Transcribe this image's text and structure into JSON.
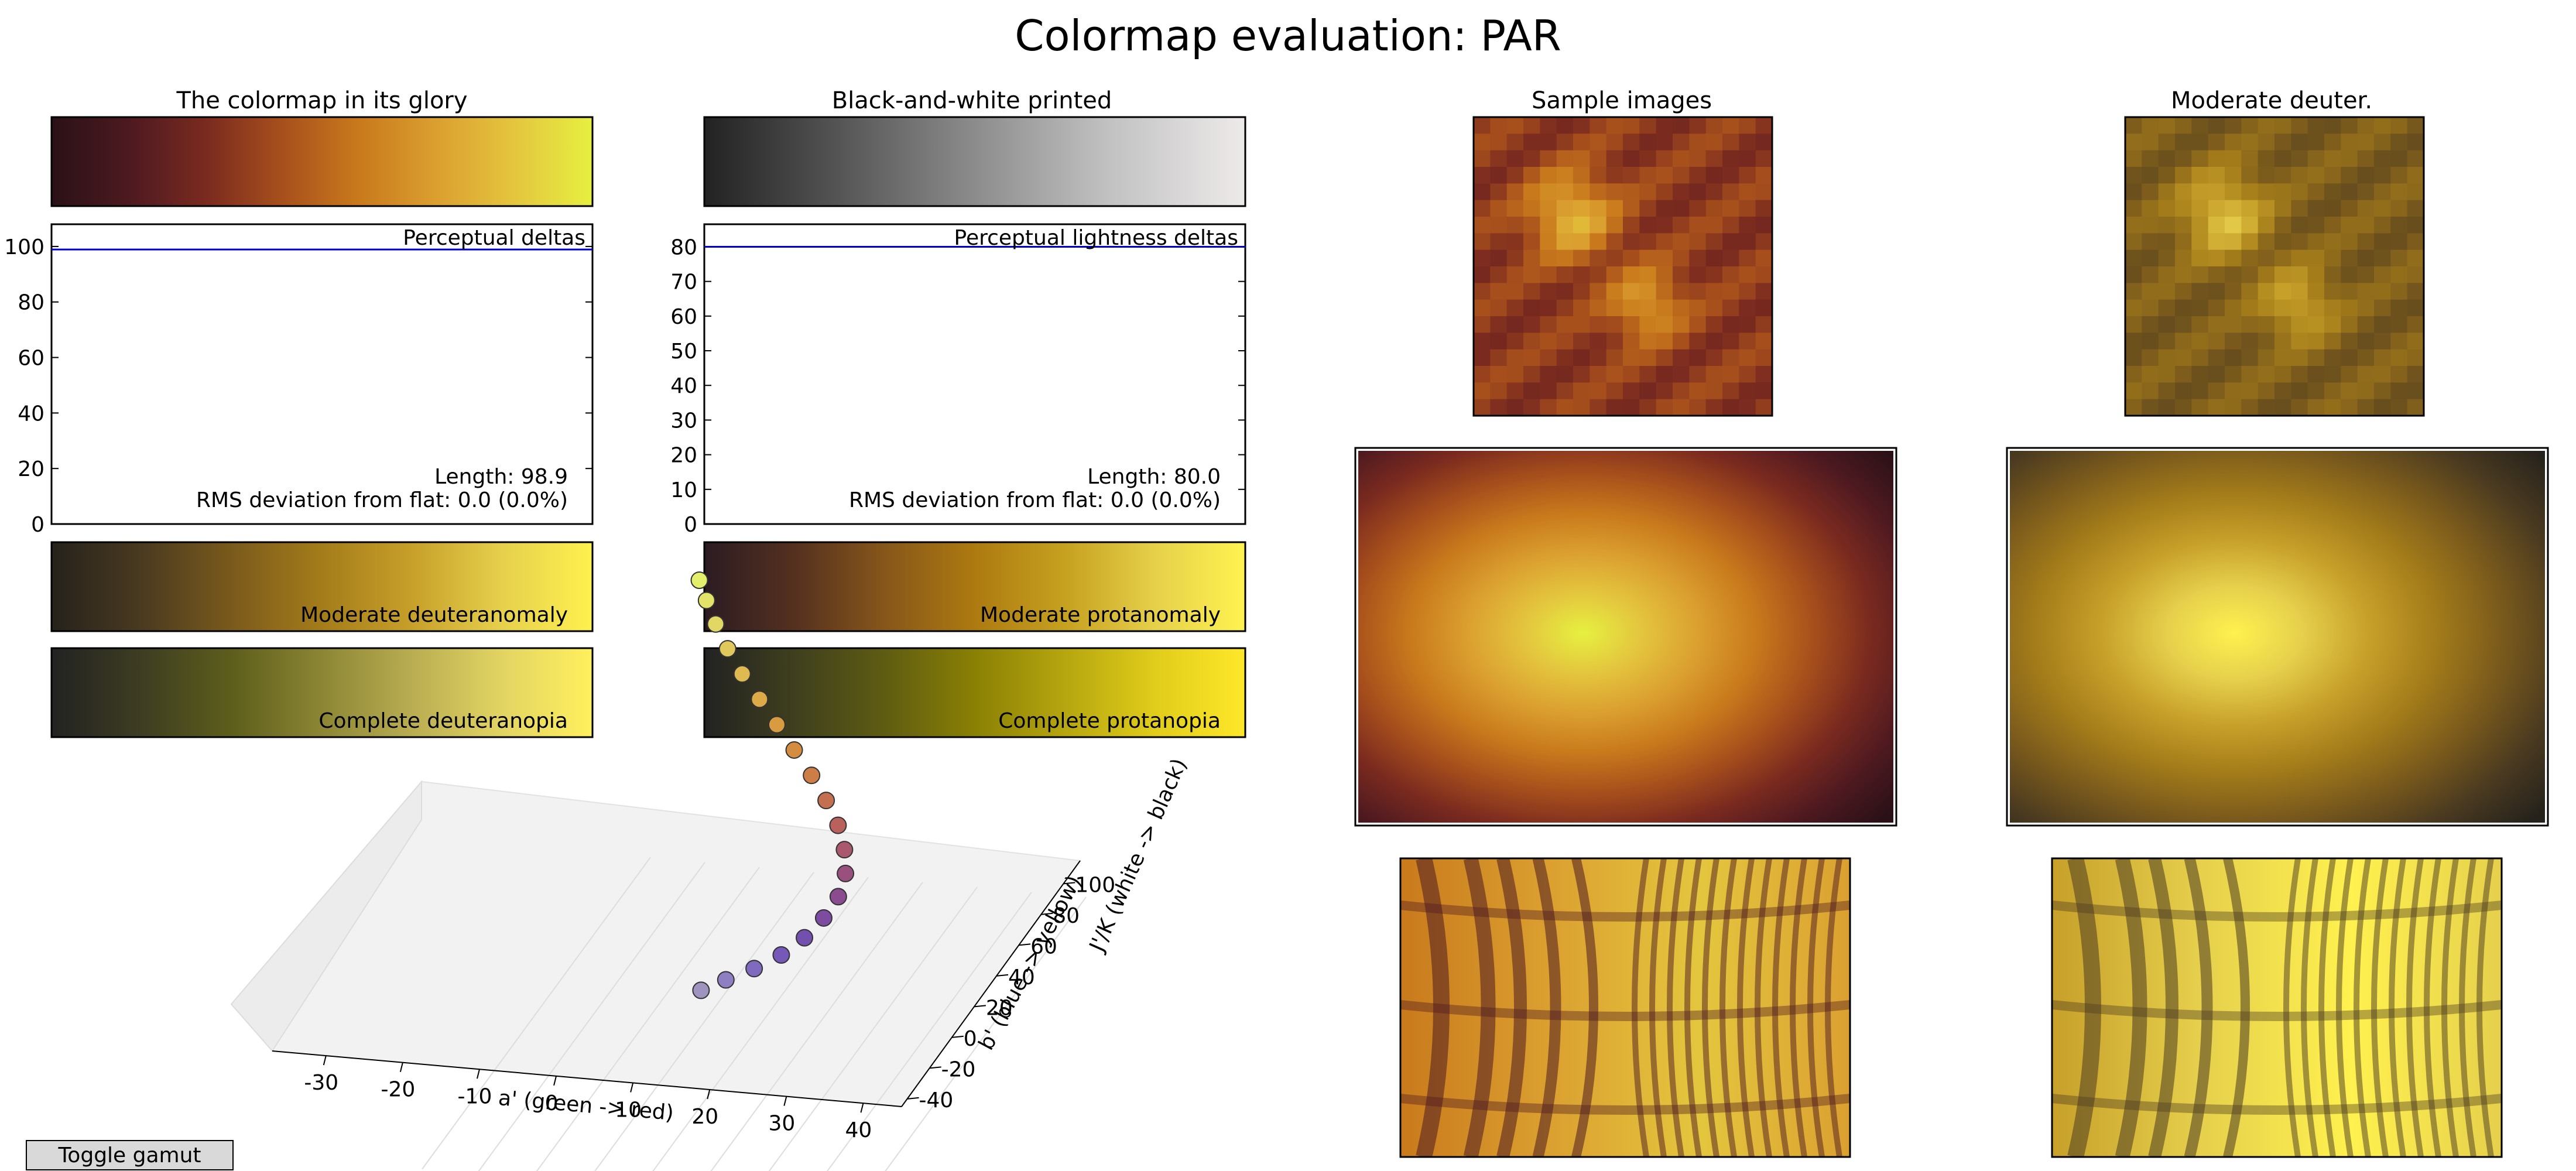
{
  "figure": {
    "title": "Colormap evaluation: PAR",
    "toggle_label": "Toggle gamut"
  },
  "colors": {
    "delta_line": "#0000cc",
    "par_stops": [
      "#2a1117",
      "#4d1920",
      "#7a2a1f",
      "#a8501c",
      "#c97a1c",
      "#dba030",
      "#e4c63e",
      "#e6f040"
    ],
    "gray_stops": [
      "#222222",
      "#555555",
      "#8c8c8c",
      "#c2c2c2",
      "#eeeaea"
    ],
    "deut_mod_stops": [
      "#25221c",
      "#4a3a20",
      "#7a5a1c",
      "#a47c1a",
      "#c7a02a",
      "#e6d04c",
      "#fff14f"
    ],
    "prot_mod_stops": [
      "#2b1c22",
      "#55301f",
      "#86561a",
      "#ad7a10",
      "#c6a120",
      "#e6d04a",
      "#fff350"
    ],
    "deut_full_stops": [
      "#222222",
      "#3e3d22",
      "#5d5e1c",
      "#8c8634",
      "#b9ad52",
      "#e2d462",
      "#fff05e"
    ],
    "prot_full_stops": [
      "#222222",
      "#3f3f1e",
      "#5e5c12",
      "#8a8004",
      "#b6a610",
      "#e0cc1a",
      "#ffe82a"
    ]
  },
  "chart_data": [
    {
      "type": "colorbar",
      "title": "The colormap in its glory"
    },
    {
      "type": "colorbar",
      "title": "Black-and-white printed"
    },
    {
      "type": "line",
      "label": "Perceptual deltas",
      "ylim": [
        0,
        108
      ],
      "yticks": [
        0,
        20,
        40,
        60,
        80,
        100
      ],
      "values": [
        98.9,
        98.9
      ],
      "length_text": "Length: 98.9",
      "rms_text": "RMS deviation from flat: 0.0 (0.0%)"
    },
    {
      "type": "line",
      "label": "Perceptual lightness deltas",
      "ylim": [
        0,
        86.5
      ],
      "yticks": [
        0,
        10,
        20,
        30,
        40,
        50,
        60,
        70,
        80
      ],
      "values": [
        80.0,
        80.0
      ],
      "length_text": "Length: 80.0",
      "rms_text": "RMS deviation from flat: 0.0 (0.0%)"
    },
    {
      "type": "colorbar",
      "label": "Moderate deuteranomaly"
    },
    {
      "type": "colorbar",
      "label": "Moderate protanomaly"
    },
    {
      "type": "colorbar",
      "label": "Complete deuteranopia"
    },
    {
      "type": "colorbar",
      "label": "Complete protanopia"
    },
    {
      "type": "scatter",
      "projection": "3d",
      "xlabel": "a' (green -> red)",
      "ylabel": "b' (blue -> yellow)",
      "zlabel": "J'/K (white -> black)",
      "xticks": [
        -30,
        -20,
        -10,
        0,
        10,
        20,
        30,
        40
      ],
      "yticks": [
        -40,
        -20,
        0,
        20,
        40,
        60,
        80,
        100
      ],
      "points": [
        [
          2.0,
          -32.0,
          18.0,
          "#9f93c0"
        ],
        [
          6.0,
          -30.0,
          22.0,
          "#8e7fc2"
        ],
        [
          10.5,
          -27.5,
          26.0,
          "#7f6abf"
        ],
        [
          14.5,
          -24.0,
          30.0,
          "#7558b8"
        ],
        [
          17.5,
          -19.5,
          34.5,
          "#7450ae"
        ],
        [
          19.5,
          -14.0,
          39.0,
          "#7d4ba0"
        ],
        [
          20.5,
          -8.0,
          43.5,
          "#8a4b8f"
        ],
        [
          20.0,
          -1.5,
          48.0,
          "#9a507e"
        ],
        [
          18.0,
          5.0,
          52.5,
          "#aa586d"
        ],
        [
          15.0,
          11.5,
          57.0,
          "#b9625d"
        ],
        [
          11.0,
          18.0,
          61.5,
          "#c46f50"
        ],
        [
          6.5,
          24.5,
          66.0,
          "#cd7d46"
        ],
        [
          1.5,
          31.0,
          70.5,
          "#d48c40"
        ],
        [
          -3.5,
          37.5,
          75.0,
          "#d99b40"
        ],
        [
          -8.5,
          44.0,
          79.5,
          "#dcaa46"
        ],
        [
          -13.5,
          50.5,
          84.0,
          "#dfba50"
        ],
        [
          -18.0,
          57.0,
          88.5,
          "#e1c85c"
        ],
        [
          -22.0,
          63.5,
          93.0,
          "#e2d664"
        ],
        [
          -25.5,
          70.0,
          97.0,
          "#e3e36a"
        ],
        [
          -28.5,
          76.0,
          100.0,
          "#e4ef6c"
        ]
      ]
    },
    {
      "type": "image",
      "title": "Sample images",
      "kind": "pixel-blob"
    },
    {
      "type": "image",
      "title": "Moderate deuter.",
      "kind": "pixel-blob"
    },
    {
      "type": "image",
      "kind": "radial-burst"
    },
    {
      "type": "image",
      "kind": "radial-burst"
    },
    {
      "type": "image",
      "kind": "interference-waves"
    },
    {
      "type": "image",
      "kind": "interference-waves"
    }
  ]
}
